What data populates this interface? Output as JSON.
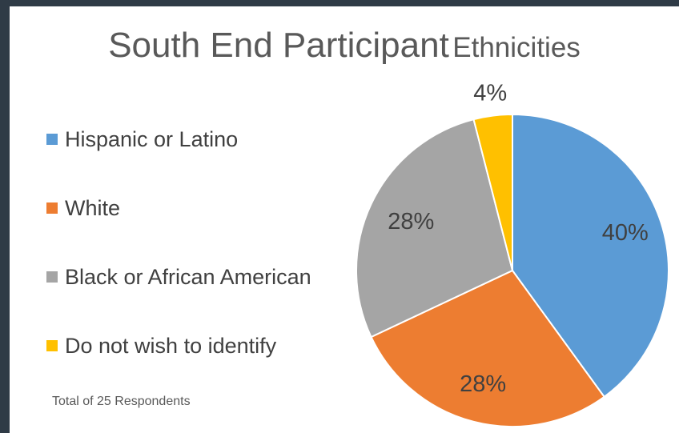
{
  "title": {
    "part1": "South End Participant",
    "part2": "Ethnicities"
  },
  "footnote": "Total of 25 Respondents",
  "chart_data": {
    "type": "pie",
    "title": "South End Participant Ethnicities",
    "categories": [
      "Hispanic or Latino",
      "White",
      "Black or African American",
      "Do not wish to identify"
    ],
    "values": [
      40,
      28,
      28,
      4
    ],
    "labels": [
      "40%",
      "28%",
      "28%",
      "4%"
    ],
    "colors": [
      "#5b9bd5",
      "#ed7d31",
      "#a5a5a5",
      "#ffc000"
    ],
    "legend_position": "left"
  }
}
